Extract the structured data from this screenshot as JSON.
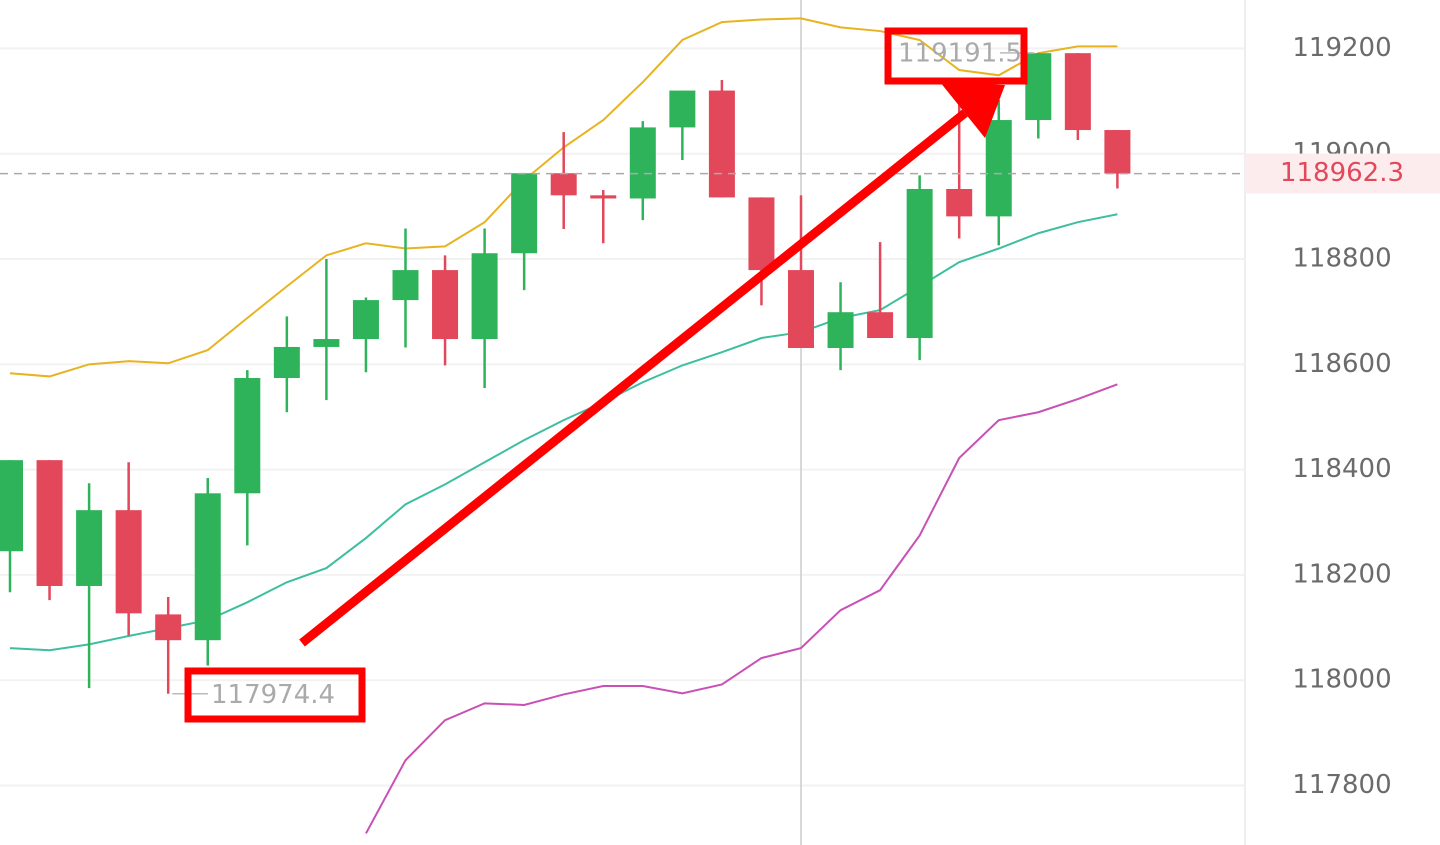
{
  "chart_data": {
    "type": "candlestick",
    "up_color": "#2fb35a",
    "down_color": "#e2475a",
    "open": [
      118245,
      118418,
      118179,
      118323,
      118125,
      118076,
      118355,
      118574,
      118633,
      118648,
      118722,
      118779,
      118648,
      118811,
      118963,
      118921,
      118915,
      119050,
      119120,
      118917,
      118779,
      118631,
      118699,
      118650,
      118933,
      118881,
      119064,
      119191,
      119045
    ],
    "high": [
      118418,
      118418,
      118374,
      118414,
      118158,
      118384,
      118589,
      118691,
      118800,
      118727,
      118858,
      118807,
      118858,
      118963,
      119041,
      118931,
      119062,
      119120,
      119140,
      118917,
      118921,
      118756,
      118832,
      118959,
      119124,
      119102,
      119191.5,
      119191,
      119045
    ],
    "low": [
      118167,
      118152,
      117985,
      118085,
      117974.4,
      118028,
      118256,
      118509,
      118532,
      118585,
      118632,
      118598,
      118555,
      118741,
      118857,
      118830,
      118874,
      118988,
      118917,
      118712,
      118631,
      118589,
      118650,
      118608,
      118839,
      118826,
      119029,
      119026,
      118934
    ],
    "close": [
      118418,
      118179,
      118323,
      118127,
      118076,
      118355,
      118574,
      118633,
      118648,
      118722,
      118779,
      118648,
      118811,
      118963,
      118921,
      118915,
      119050,
      119120,
      118917,
      118779,
      118631,
      118699,
      118650,
      118933,
      118881,
      119064,
      119191,
      119045,
      118962.3
    ],
    "bands": [
      {
        "color": "#e8b321",
        "values": [
          118583,
          118577,
          118600,
          118606,
          118602,
          118627,
          118688,
          118748,
          118807,
          118830,
          118820,
          118824,
          118870,
          118950,
          119012,
          119064,
          119136,
          119216,
          119250,
          119255,
          119257,
          119240,
          119233,
          119216,
          119159,
          119149,
          119191,
          119204,
          119204
        ]
      },
      {
        "color": "#3dbf9f",
        "values": [
          118061,
          118057,
          118068,
          118084,
          118099,
          118114,
          118148,
          118186,
          118213,
          118270,
          118334,
          118372,
          118414,
          118456,
          118494,
          118528,
          118566,
          118598,
          118623,
          118650,
          118661,
          118688,
          118703,
          118748,
          118794,
          118820,
          118849,
          118870,
          118885
        ]
      },
      {
        "color": "#c950b5",
        "values": [
          null,
          null,
          null,
          null,
          null,
          null,
          null,
          null,
          null,
          117709,
          117848,
          117924,
          117956,
          117953,
          117973,
          117989,
          117989,
          117975,
          117992,
          118042,
          118061,
          118133,
          118171,
          118275,
          118422,
          118494,
          118509,
          118534,
          118562
        ]
      }
    ],
    "ylim": [
      117687,
      119292
    ],
    "yticks": [
      117800,
      118000,
      118200,
      118400,
      118600,
      118800,
      119000,
      119200
    ],
    "grid": true,
    "min_label": 117974.4,
    "max_label": 119191.5,
    "last_price": 118962.3
  }
}
